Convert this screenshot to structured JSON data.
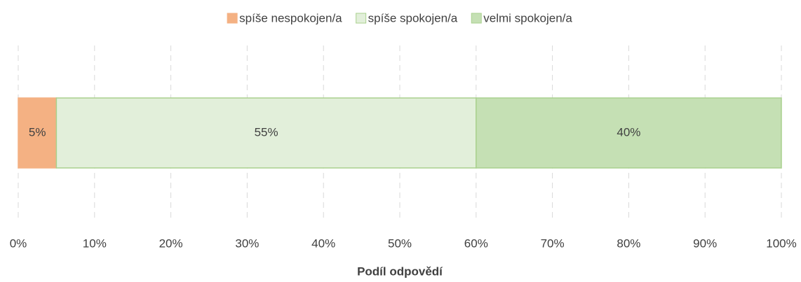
{
  "chart_data": {
    "type": "stacked_barh",
    "x_label": "Podíl odpovědí",
    "categories": [
      null
    ],
    "series": [
      {
        "name": "spíše nespokojen/a",
        "color": "#f4b183",
        "edgecolor": "#f4b183",
        "values": [
          5
        ],
        "value_labels": [
          "5%"
        ]
      },
      {
        "name": "spíše spokojen/a",
        "color": "#e2efda",
        "edgecolor": "#a9d18e",
        "values": [
          55
        ],
        "value_labels": [
          "55%"
        ]
      },
      {
        "name": "velmi spokojen/a",
        "color": "#c5e0b4",
        "edgecolor": "#a9d18e",
        "values": [
          40
        ],
        "value_labels": [
          "40%"
        ]
      }
    ],
    "xlim": [
      0,
      100
    ],
    "xticks": [
      {
        "value": 0,
        "label": "0%"
      },
      {
        "value": 10,
        "label": "10%"
      },
      {
        "value": 20,
        "label": "20%"
      },
      {
        "value": 30,
        "label": "30%"
      },
      {
        "value": 40,
        "label": "40%"
      },
      {
        "value": 50,
        "label": "50%"
      },
      {
        "value": 60,
        "label": "60%"
      },
      {
        "value": 70,
        "label": "70%"
      },
      {
        "value": 80,
        "label": "80%"
      },
      {
        "value": 90,
        "label": "90%"
      },
      {
        "value": 100,
        "label": "100%"
      }
    ],
    "grid": true,
    "legend": "top"
  }
}
